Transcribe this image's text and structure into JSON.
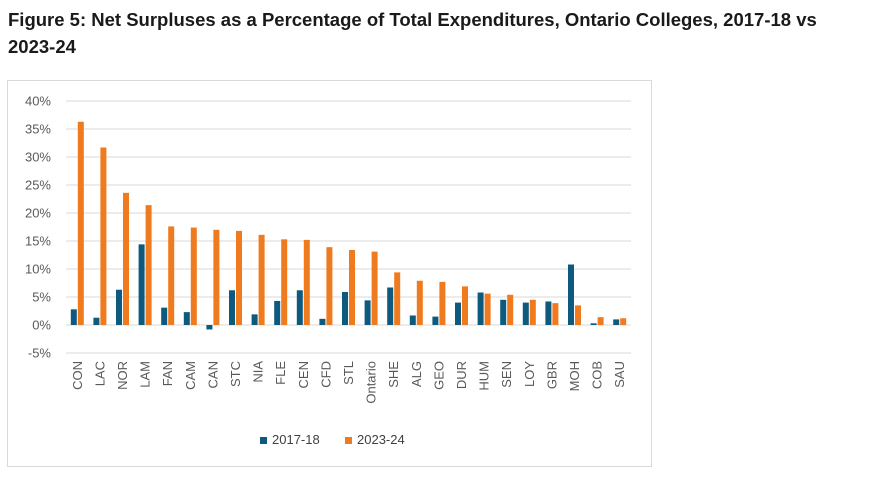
{
  "figure": {
    "title": "Figure 5: Net Surpluses as a Percentage of Total Expenditures, Ontario Colleges, 2017-18 vs 2023-24"
  },
  "colors": {
    "series_2017": "#0e5a7e",
    "series_2023": "#f07a1e",
    "grid": "#d9d9d9",
    "border": "#d9d9d9"
  },
  "chart_data": {
    "type": "bar",
    "title": "",
    "xlabel": "",
    "ylabel": "",
    "ylim": [
      -5,
      40
    ],
    "y_ticks": [
      {
        "value": 40,
        "label": "40%"
      },
      {
        "value": 35,
        "label": "35%"
      },
      {
        "value": 30,
        "label": "30%"
      },
      {
        "value": 25,
        "label": "25%"
      },
      {
        "value": 20,
        "label": "20%"
      },
      {
        "value": 15,
        "label": "15%"
      },
      {
        "value": 10,
        "label": "10%"
      },
      {
        "value": 5,
        "label": "5%"
      },
      {
        "value": 0,
        "label": "0%"
      },
      {
        "value": -5,
        "label": "-5%"
      }
    ],
    "grid": true,
    "legend_position": "bottom",
    "categories": [
      "CON",
      "LAC",
      "NOR",
      "LAM",
      "FAN",
      "CAM",
      "CAN",
      "STC",
      "NIA",
      "FLE",
      "CEN",
      "CFD",
      "STL",
      "Ontario",
      "SHE",
      "ALG",
      "GEO",
      "DUR",
      "HUM",
      "SEN",
      "LOY",
      "GBR",
      "MOH",
      "COB",
      "SAU"
    ],
    "series": [
      {
        "name": "2017-18",
        "color": "#0e5a7e",
        "values": [
          2.8,
          1.3,
          6.3,
          14.4,
          3.1,
          2.3,
          -0.8,
          6.2,
          1.9,
          4.3,
          6.2,
          1.1,
          5.9,
          4.4,
          6.7,
          1.7,
          1.5,
          4.0,
          5.8,
          4.5,
          4.0,
          4.2,
          10.8,
          0.3,
          1.0
        ]
      },
      {
        "name": "2023-24",
        "color": "#f07a1e",
        "values": [
          36.3,
          31.7,
          23.6,
          21.4,
          17.6,
          17.4,
          17.0,
          16.8,
          16.1,
          15.3,
          15.2,
          13.9,
          13.4,
          13.1,
          9.4,
          7.9,
          7.7,
          6.9,
          5.6,
          5.4,
          4.5,
          3.9,
          3.5,
          1.4,
          1.2
        ]
      }
    ]
  }
}
